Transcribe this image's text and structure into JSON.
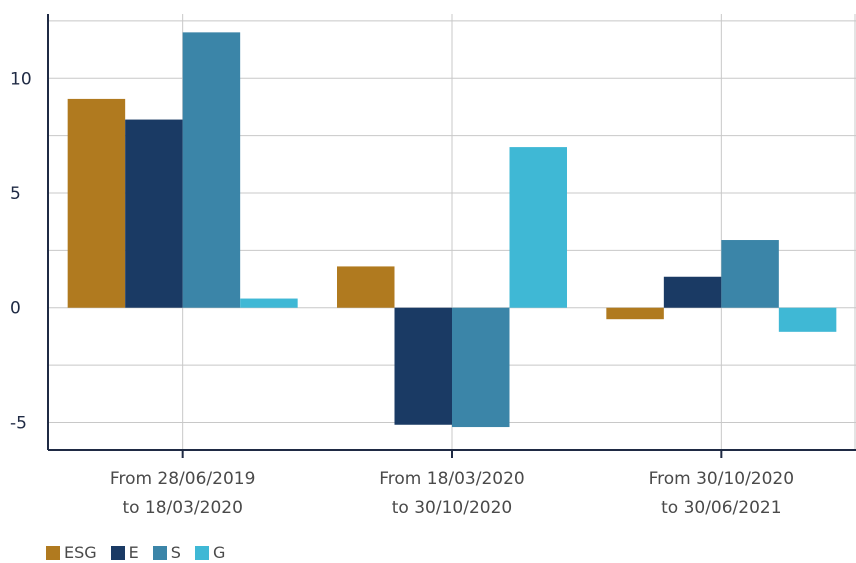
{
  "chart_data": {
    "type": "bar",
    "categories": [
      [
        "From 28/06/2019",
        "to 18/03/2020"
      ],
      [
        "From 18/03/2020",
        "to 30/10/2020"
      ],
      [
        "From 30/10/2020",
        "to 30/06/2021"
      ]
    ],
    "series": [
      {
        "name": "ESG",
        "color": "#b07a1f",
        "values": [
          9.1,
          1.8,
          -0.5
        ]
      },
      {
        "name": "E",
        "color": "#1a3a64",
        "values": [
          8.2,
          -5.1,
          1.35
        ]
      },
      {
        "name": "S",
        "color": "#3b85a8",
        "values": [
          12.0,
          -5.2,
          2.95
        ]
      },
      {
        "name": "G",
        "color": "#3fb8d5",
        "values": [
          0.4,
          7.0,
          -1.05
        ]
      }
    ],
    "ylim": [
      -6.2,
      12.8
    ],
    "yticks": [
      -5,
      0,
      5,
      10
    ],
    "ytick_labels": [
      "-5",
      "0",
      "5",
      "10"
    ],
    "grid": true,
    "legend_position": "bottom-left",
    "title": "",
    "xlabel": "",
    "ylabel": ""
  }
}
